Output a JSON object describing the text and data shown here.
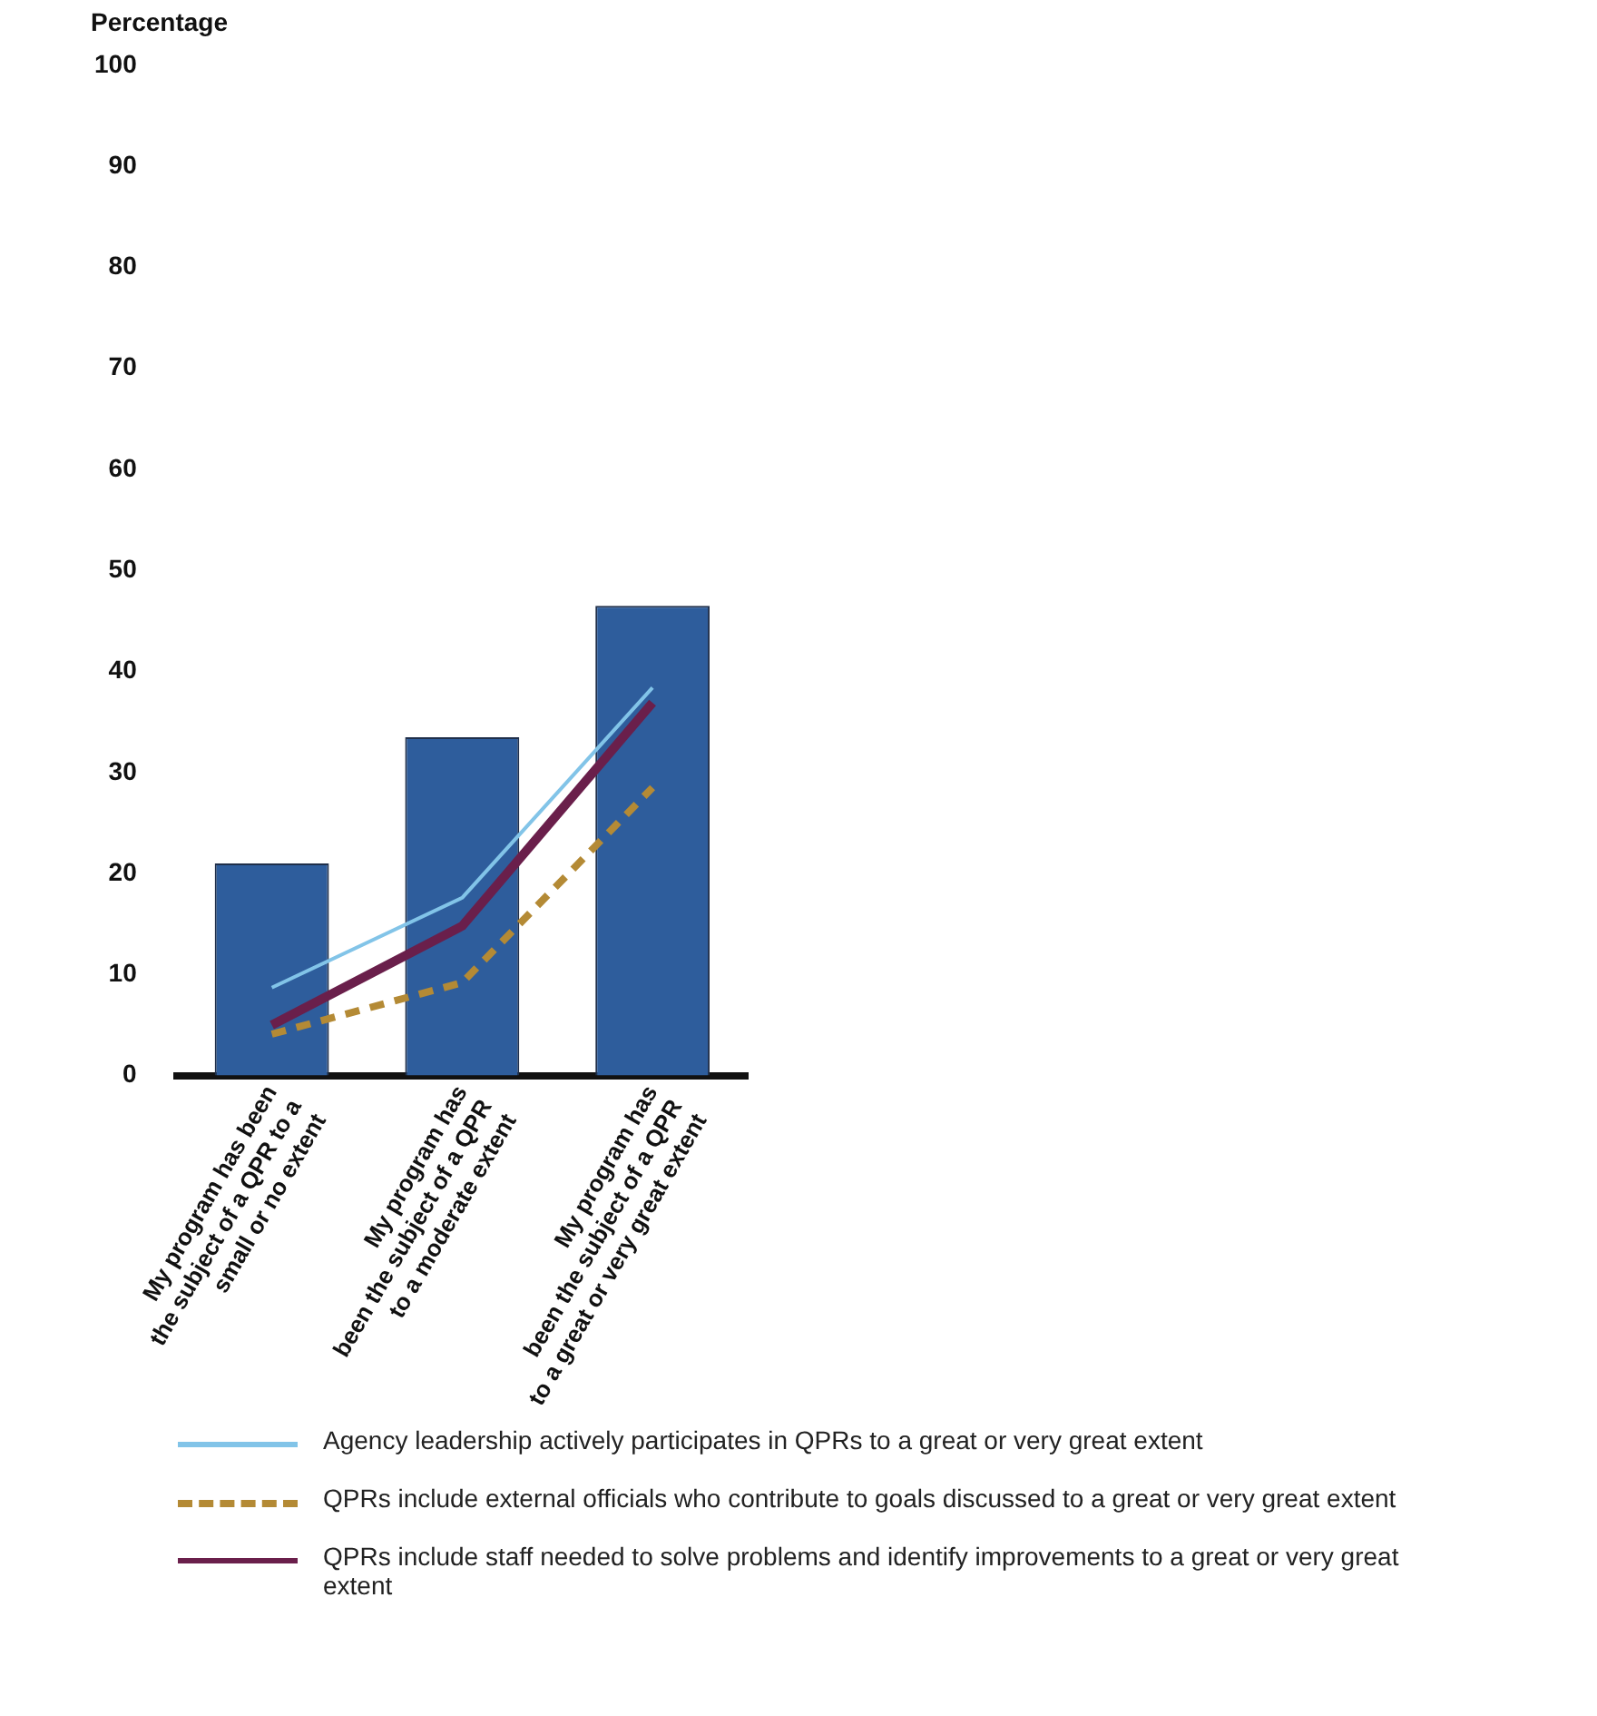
{
  "chart_data": {
    "type": "bar",
    "ylabel": "Percentage",
    "categories": [
      "My program has been\nthe subject of a QPR to a\nsmall or no extent",
      "My program has\nbeen the subject of a QPR\nto a moderate extent",
      "My program has\nbeen the subject of a QPR\nto a great or very great extent"
    ],
    "series": [
      {
        "color": "#2e5d9c",
        "values": [
          21,
          33.5,
          46.5
        ]
      },
      {
        "type": "line",
        "name": "Agency leadership actively participates in QPRs to a great or very great extent",
        "color": "#82c4e8",
        "line_style": "solid",
        "values": [
          8.7,
          17.6,
          38.4
        ]
      },
      {
        "type": "line",
        "name": "QPRs include external officials who contribute to goals discussed to a great or very great extent",
        "color": "#b48a35",
        "line_style": "dashed",
        "values": [
          4.1,
          9.2,
          28.5
        ]
      },
      {
        "type": "line",
        "name": "QPRs include staff needed to solve problems and identify improvements to a great or very great extent",
        "color": "#6a1f4b",
        "line_style": "solid",
        "values": [
          5,
          14.8,
          36.9
        ]
      }
    ],
    "ylim": [
      0,
      100
    ],
    "yticks": [
      0,
      10,
      20,
      30,
      40,
      50,
      60,
      70,
      80,
      90,
      100
    ],
    "grid": false,
    "legend": "bottom",
    "marker": "none"
  }
}
